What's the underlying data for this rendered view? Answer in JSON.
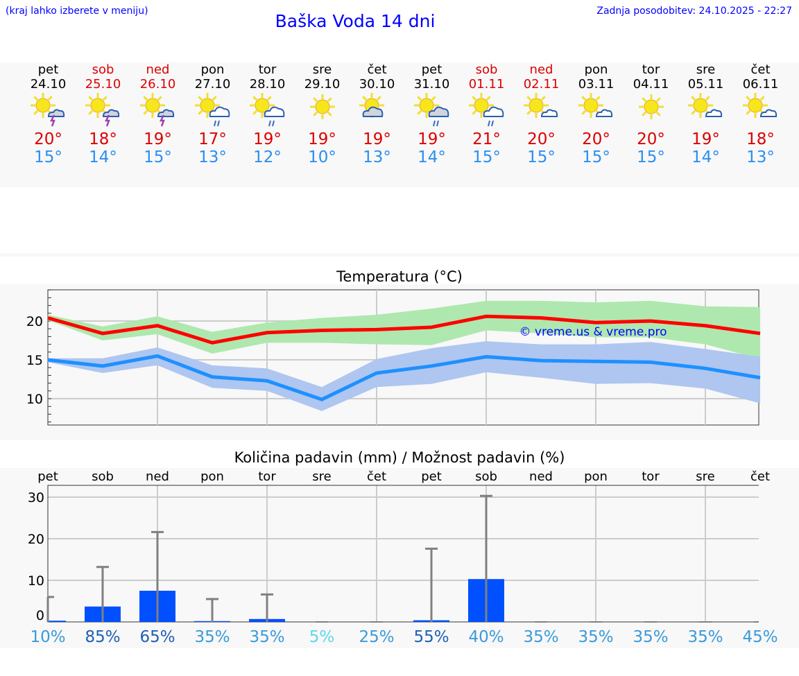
{
  "header": {
    "note": "(kraj lahko izberete v meniju)",
    "title": "Baška Voda 14 dni",
    "updated": "Zadnja posodobitev: 24.10.2025 - 22:27"
  },
  "days": [
    {
      "name": "pet",
      "date": "24.10",
      "weekend": false,
      "icon": "sun-thunderstorm-icon",
      "max": "20°",
      "min": "15°"
    },
    {
      "name": "sob",
      "date": "25.10",
      "weekend": true,
      "icon": "sun-thunderstorm-icon",
      "max": "18°",
      "min": "14°"
    },
    {
      "name": "ned",
      "date": "26.10",
      "weekend": true,
      "icon": "sun-thunderstorm-icon",
      "max": "19°",
      "min": "15°"
    },
    {
      "name": "pon",
      "date": "27.10",
      "weekend": false,
      "icon": "sun-cloud-rain-icon",
      "max": "17°",
      "min": "13°"
    },
    {
      "name": "tor",
      "date": "28.10",
      "weekend": false,
      "icon": "sun-cloud-rain-icon",
      "max": "19°",
      "min": "12°"
    },
    {
      "name": "sre",
      "date": "29.10",
      "weekend": false,
      "icon": "sun-icon",
      "max": "19°",
      "min": "10°"
    },
    {
      "name": "čet",
      "date": "30.10",
      "weekend": false,
      "icon": "sun-grey-cloud-icon",
      "max": "19°",
      "min": "13°"
    },
    {
      "name": "pet",
      "date": "31.10",
      "weekend": false,
      "icon": "sun-grey-cloud-rain-icon",
      "max": "19°",
      "min": "14°"
    },
    {
      "name": "sob",
      "date": "01.11",
      "weekend": true,
      "icon": "sun-cloud-rain-icon",
      "max": "21°",
      "min": "15°"
    },
    {
      "name": "ned",
      "date": "02.11",
      "weekend": true,
      "icon": "sun-small-cloud-icon",
      "max": "20°",
      "min": "15°"
    },
    {
      "name": "pon",
      "date": "03.11",
      "weekend": false,
      "icon": "sun-small-cloud-icon",
      "max": "20°",
      "min": "15°"
    },
    {
      "name": "tor",
      "date": "04.11",
      "weekend": false,
      "icon": "sun-icon",
      "max": "20°",
      "min": "15°"
    },
    {
      "name": "sre",
      "date": "05.11",
      "weekend": false,
      "icon": "sun-small-cloud-icon",
      "max": "19°",
      "min": "14°"
    },
    {
      "name": "čet",
      "date": "06.11",
      "weekend": false,
      "icon": "sun-small-cloud-icon",
      "max": "18°",
      "min": "13°"
    }
  ],
  "colors": {
    "weekend": "#dd0000",
    "max": "#ff0000",
    "min": "#1e90ff",
    "max_band": "#aee8ae",
    "min_band": "#aec6f0",
    "bar": "#0050ff",
    "err": "#808080"
  },
  "chart_data": [
    {
      "type": "line",
      "title": "Temperatura (°C)",
      "watermark": "© vreme.us & vreme.pro",
      "ylim": [
        6.5,
        24
      ],
      "yticks": [
        "10",
        "15",
        "20"
      ],
      "x": [
        0,
        1,
        2,
        3,
        4,
        5,
        6,
        7,
        8,
        9,
        10,
        11,
        12,
        13
      ],
      "series": [
        {
          "name": "max",
          "values": [
            20.4,
            18.4,
            19.4,
            17.2,
            18.5,
            18.8,
            18.9,
            19.2,
            20.6,
            20.4,
            19.8,
            20.0,
            19.4,
            18.4
          ],
          "band_lo": [
            20.1,
            17.5,
            18.3,
            15.8,
            17.2,
            17.2,
            17.0,
            16.9,
            18.8,
            18.4,
            17.9,
            17.9,
            17.0,
            15.1
          ],
          "band_hi": [
            20.8,
            19.3,
            20.6,
            18.6,
            19.8,
            20.4,
            20.8,
            21.6,
            22.6,
            22.6,
            22.4,
            22.6,
            21.9,
            21.8
          ]
        },
        {
          "name": "min",
          "values": [
            15.0,
            14.2,
            15.5,
            12.8,
            12.3,
            9.9,
            13.3,
            14.2,
            15.4,
            14.9,
            14.8,
            14.7,
            13.9,
            12.7
          ],
          "band_lo": [
            14.7,
            13.3,
            14.3,
            11.4,
            11.0,
            8.4,
            11.5,
            11.9,
            13.4,
            12.7,
            11.9,
            12.0,
            11.3,
            9.4
          ],
          "band_hi": [
            15.2,
            15.2,
            16.6,
            14.3,
            13.9,
            11.5,
            15.1,
            16.5,
            17.4,
            17.0,
            17.0,
            17.3,
            16.4,
            15.4
          ]
        }
      ]
    },
    {
      "type": "bar",
      "title": "Količina padavin (mm) / Možnost padavin (%)",
      "ylim": [
        0,
        33
      ],
      "yticks": [
        "0",
        "10",
        "20",
        "30"
      ],
      "categories": [
        "pet",
        "sob",
        "ned",
        "pon",
        "tor",
        "sre",
        "čet",
        "pet",
        "sob",
        "ned",
        "pon",
        "tor",
        "sre",
        "čet"
      ],
      "values": [
        0.3,
        3.7,
        7.5,
        0.2,
        0.7,
        0,
        0,
        0.4,
        10.3,
        0,
        0,
        0,
        0,
        0
      ],
      "err_max": [
        6,
        13.2,
        21.6,
        5.5,
        6.6,
        0,
        0,
        17.6,
        30.3,
        0,
        0,
        0,
        0,
        0
      ],
      "probability": [
        "10%",
        "85%",
        "65%",
        "35%",
        "35%",
        "5%",
        "25%",
        "55%",
        "40%",
        "35%",
        "35%",
        "35%",
        "35%",
        "45%"
      ],
      "prob_colors": [
        "#3a9ad9",
        "#1e60b0",
        "#1e60b0",
        "#3a9ad9",
        "#3a9ad9",
        "#5ad8e8",
        "#3a9ad9",
        "#1e60b0",
        "#3a9ad9",
        "#3a9ad9",
        "#3a9ad9",
        "#3a9ad9",
        "#3a9ad9",
        "#3a9ad9"
      ]
    }
  ]
}
